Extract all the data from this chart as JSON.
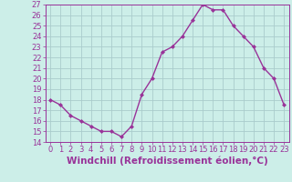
{
  "x": [
    0,
    1,
    2,
    3,
    4,
    5,
    6,
    7,
    8,
    9,
    10,
    11,
    12,
    13,
    14,
    15,
    16,
    17,
    18,
    19,
    20,
    21,
    22,
    23
  ],
  "y": [
    18,
    17.5,
    16.5,
    16,
    15.5,
    15,
    15,
    14.5,
    15.5,
    18.5,
    20,
    22.5,
    23,
    24,
    25.5,
    27,
    26.5,
    26.5,
    25,
    24,
    23,
    21,
    20,
    17.5
  ],
  "xlabel": "Windchill (Refroidissement éolien,°C)",
  "line_color": "#993399",
  "marker": "D",
  "marker_size": 2,
  "bg_color": "#cceee8",
  "grid_color": "#aacccc",
  "ylim": [
    14,
    27
  ],
  "xlim": [
    -0.5,
    23.5
  ],
  "yticks": [
    14,
    15,
    16,
    17,
    18,
    19,
    20,
    21,
    22,
    23,
    24,
    25,
    26,
    27
  ],
  "xticks": [
    0,
    1,
    2,
    3,
    4,
    5,
    6,
    7,
    8,
    9,
    10,
    11,
    12,
    13,
    14,
    15,
    16,
    17,
    18,
    19,
    20,
    21,
    22,
    23
  ],
  "tick_color": "#993399",
  "xlabel_fontsize": 7.5,
  "tick_fontsize": 6,
  "linewidth": 1.0
}
